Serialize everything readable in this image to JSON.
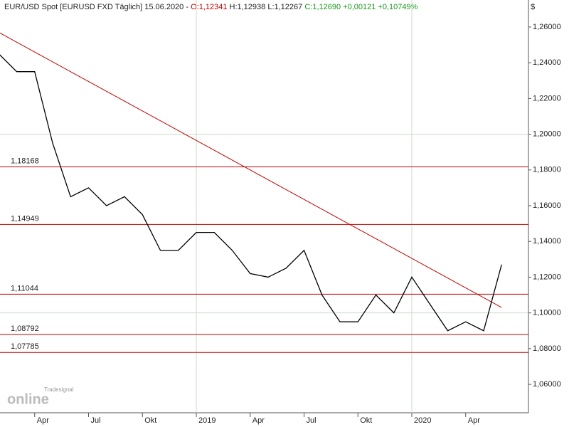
{
  "chart_data": {
    "type": "line",
    "header": {
      "instrument": "EUR/USD Spot [EURUSD FXD  Täglich] 15.06.2020 - ",
      "open": "O:1,12341",
      "high_low": " H:1,12938 L:1,12267 ",
      "close": "C:1,12690 +0,00121 +0,10749%"
    },
    "currency": "$",
    "logo": "Tradesignal",
    "logo_sub": "online",
    "x": [
      "2018-02",
      "2018-03",
      "2018-04",
      "2018-05",
      "2018-06",
      "2018-07",
      "2018-08",
      "2018-09",
      "2018-10",
      "2018-11",
      "2018-12",
      "2019-01",
      "2019-02",
      "2019-03",
      "2019-04",
      "2019-05",
      "2019-06",
      "2019-07",
      "2019-08",
      "2019-09",
      "2019-10",
      "2019-11",
      "2019-12",
      "2020-01",
      "2020-02",
      "2020-03",
      "2020-04",
      "2020-05",
      "2020-06"
    ],
    "series": [
      {
        "name": "EUR/USD",
        "color": "#000000",
        "values": [
          1.245,
          1.235,
          1.235,
          1.195,
          1.165,
          1.17,
          1.16,
          1.165,
          1.155,
          1.135,
          1.135,
          1.145,
          1.145,
          1.135,
          1.122,
          1.12,
          1.125,
          1.135,
          1.11,
          1.095,
          1.095,
          1.11,
          1.1,
          1.12,
          1.105,
          1.09,
          1.095,
          1.09,
          1.127
        ]
      }
    ],
    "trendline": {
      "x": [
        "2018-02",
        "2020-06"
      ],
      "values": [
        1.257,
        1.103
      ],
      "color": "#c00000"
    },
    "levels": [
      {
        "value": 1.18168,
        "label": "1,18168"
      },
      {
        "value": 1.14949,
        "label": "1,14949"
      },
      {
        "value": 1.11044,
        "label": "1,11044"
      },
      {
        "value": 1.08792,
        "label": "1,08792"
      },
      {
        "value": 1.07785,
        "label": "1,07785"
      }
    ],
    "level_color": "#c00000",
    "ylim": [
      1.0441,
      1.2751
    ],
    "yticks": [
      {
        "value": 1.06,
        "label": "1,06000"
      },
      {
        "value": 1.08,
        "label": "1,08000"
      },
      {
        "value": 1.1,
        "label": "1,10000"
      },
      {
        "value": 1.12,
        "label": "1,12000"
      },
      {
        "value": 1.14,
        "label": "1,14000"
      },
      {
        "value": 1.16,
        "label": "1,16000"
      },
      {
        "value": 1.18,
        "label": "1,18000"
      },
      {
        "value": 1.2,
        "label": "1,20000"
      },
      {
        "value": 1.22,
        "label": "1,22000"
      },
      {
        "value": 1.24,
        "label": "1,24000"
      },
      {
        "value": 1.26,
        "label": "1,26000"
      }
    ],
    "xticks": [
      {
        "value": "2018-04",
        "label": "Apr"
      },
      {
        "value": "2018-07",
        "label": "Jul"
      },
      {
        "value": "2018-10",
        "label": "Okt"
      },
      {
        "value": "2019-01",
        "label": "2019"
      },
      {
        "value": "2019-04",
        "label": "Apr"
      },
      {
        "value": "2019-07",
        "label": "Jul"
      },
      {
        "value": "2019-10",
        "label": "Okt"
      },
      {
        "value": "2020-01",
        "label": "2020"
      },
      {
        "value": "2020-04",
        "label": "Apr"
      }
    ],
    "ygrid": [
      1.1,
      1.2
    ],
    "xgrid": [
      "2019-01",
      "2020-01"
    ]
  }
}
